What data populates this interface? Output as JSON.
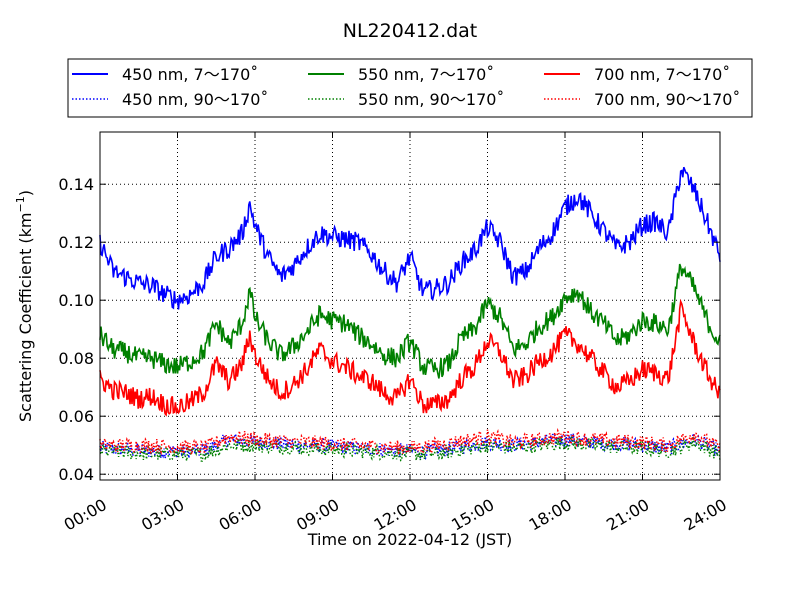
{
  "chart_data": {
    "type": "line",
    "title": "NL220412.dat",
    "xlabel": "Time on 2022-04-12 (JST)",
    "ylabel_main": "Scattering Coefficient (km",
    "ylabel_sup": "−1",
    "ylabel_close": ")",
    "xlim_hours": [
      0,
      24
    ],
    "ylim": [
      0.038,
      0.158
    ],
    "grid": true,
    "legend_position": "top",
    "x_ticks": [
      {
        "hour": 0,
        "label": "00:00"
      },
      {
        "hour": 3,
        "label": "03:00"
      },
      {
        "hour": 6,
        "label": "06:00"
      },
      {
        "hour": 9,
        "label": "09:00"
      },
      {
        "hour": 12,
        "label": "12:00"
      },
      {
        "hour": 15,
        "label": "15:00"
      },
      {
        "hour": 18,
        "label": "18:00"
      },
      {
        "hour": 21,
        "label": "21:00"
      },
      {
        "hour": 24,
        "label": "24:00"
      }
    ],
    "y_ticks": [
      {
        "value": 0.04,
        "label": "0.04"
      },
      {
        "value": 0.06,
        "label": "0.06"
      },
      {
        "value": 0.08,
        "label": "0.08"
      },
      {
        "value": 0.1,
        "label": "0.10"
      },
      {
        "value": 0.12,
        "label": "0.12"
      },
      {
        "value": 0.14,
        "label": "0.14"
      }
    ],
    "series": [
      {
        "name": "450 nm, 7～170˚",
        "color": "#0000ff",
        "style": "solid",
        "hours": [
          0,
          0.5,
          1,
          1.5,
          2,
          2.5,
          3,
          3.5,
          4,
          4.5,
          5,
          5.5,
          5.8,
          6,
          6.5,
          7,
          7.5,
          8,
          8.5,
          9,
          9.5,
          10,
          10.5,
          11,
          11.5,
          12,
          12.5,
          13,
          13.5,
          14,
          14.5,
          15,
          15.5,
          16,
          16.5,
          17,
          17.5,
          18,
          18.5,
          19,
          19.5,
          20,
          20.5,
          21,
          21.5,
          22,
          22.5,
          23,
          23.5,
          24
        ],
        "values": [
          0.12,
          0.11,
          0.108,
          0.106,
          0.105,
          0.102,
          0.1,
          0.102,
          0.106,
          0.115,
          0.118,
          0.123,
          0.133,
          0.126,
          0.115,
          0.108,
          0.112,
          0.118,
          0.123,
          0.122,
          0.121,
          0.12,
          0.116,
          0.11,
          0.106,
          0.115,
          0.103,
          0.104,
          0.106,
          0.113,
          0.117,
          0.125,
          0.12,
          0.108,
          0.11,
          0.118,
          0.123,
          0.132,
          0.136,
          0.13,
          0.124,
          0.118,
          0.12,
          0.126,
          0.127,
          0.123,
          0.145,
          0.138,
          0.127,
          0.115
        ]
      },
      {
        "name": "550 nm, 7～170˚",
        "color": "#008000",
        "style": "solid",
        "hours": [
          0,
          0.5,
          1,
          1.5,
          2,
          2.5,
          3,
          3.5,
          4,
          4.5,
          5,
          5.5,
          5.8,
          6,
          6.5,
          7,
          7.5,
          8,
          8.5,
          9,
          9.5,
          10,
          10.5,
          11,
          11.5,
          12,
          12.5,
          13,
          13.5,
          14,
          14.5,
          15,
          15.5,
          16,
          16.5,
          17,
          17.5,
          18,
          18.5,
          19,
          19.5,
          20,
          20.5,
          21,
          21.5,
          22,
          22.5,
          23,
          23.5,
          24
        ],
        "values": [
          0.088,
          0.083,
          0.082,
          0.08,
          0.08,
          0.078,
          0.077,
          0.079,
          0.082,
          0.092,
          0.085,
          0.092,
          0.103,
          0.094,
          0.086,
          0.081,
          0.084,
          0.089,
          0.095,
          0.093,
          0.092,
          0.088,
          0.085,
          0.081,
          0.08,
          0.086,
          0.077,
          0.076,
          0.078,
          0.087,
          0.09,
          0.099,
          0.094,
          0.083,
          0.085,
          0.091,
          0.094,
          0.101,
          0.103,
          0.096,
          0.092,
          0.086,
          0.088,
          0.093,
          0.092,
          0.09,
          0.112,
          0.104,
          0.093,
          0.085
        ]
      },
      {
        "name": "700 nm, 7～170˚",
        "color": "#ff0000",
        "style": "solid",
        "hours": [
          0,
          0.5,
          1,
          1.5,
          2,
          2.5,
          3,
          3.5,
          4,
          4.5,
          5,
          5.5,
          5.8,
          6,
          6.5,
          7,
          7.5,
          8,
          8.5,
          9,
          9.5,
          10,
          10.5,
          11,
          11.5,
          12,
          12.5,
          13,
          13.5,
          14,
          14.5,
          15,
          15.5,
          16,
          16.5,
          17,
          17.5,
          18,
          18.5,
          19,
          19.5,
          20,
          20.5,
          21,
          21.5,
          22,
          22.5,
          23,
          23.5,
          24
        ],
        "values": [
          0.073,
          0.069,
          0.068,
          0.066,
          0.067,
          0.064,
          0.063,
          0.065,
          0.068,
          0.078,
          0.072,
          0.078,
          0.088,
          0.081,
          0.073,
          0.068,
          0.071,
          0.076,
          0.083,
          0.079,
          0.077,
          0.074,
          0.072,
          0.068,
          0.066,
          0.073,
          0.064,
          0.064,
          0.066,
          0.073,
          0.077,
          0.086,
          0.082,
          0.072,
          0.074,
          0.079,
          0.082,
          0.088,
          0.085,
          0.08,
          0.075,
          0.07,
          0.072,
          0.076,
          0.075,
          0.073,
          0.097,
          0.085,
          0.075,
          0.067
        ]
      },
      {
        "name": "450 nm, 90～170˚",
        "color": "#0000ff",
        "style": "dotted",
        "hours": [
          0,
          2,
          4,
          5,
          6,
          8,
          10,
          12,
          13,
          15,
          16,
          18,
          19,
          21,
          22,
          23,
          24
        ],
        "values": [
          0.049,
          0.048,
          0.048,
          0.052,
          0.051,
          0.05,
          0.049,
          0.048,
          0.048,
          0.051,
          0.05,
          0.052,
          0.051,
          0.05,
          0.049,
          0.052,
          0.048
        ]
      },
      {
        "name": "550 nm, 90～170˚",
        "color": "#008000",
        "style": "dotted",
        "hours": [
          0,
          2,
          4,
          5,
          6,
          8,
          10,
          12,
          13,
          15,
          16,
          18,
          19,
          21,
          22,
          23,
          24
        ],
        "values": [
          0.048,
          0.047,
          0.047,
          0.05,
          0.05,
          0.049,
          0.048,
          0.047,
          0.047,
          0.05,
          0.049,
          0.051,
          0.05,
          0.049,
          0.048,
          0.051,
          0.047
        ]
      },
      {
        "name": "700 nm, 90～170˚",
        "color": "#ff0000",
        "style": "dotted",
        "hours": [
          0,
          2,
          4,
          5,
          6,
          8,
          10,
          12,
          13,
          15,
          16,
          18,
          19,
          21,
          22,
          23,
          24
        ],
        "values": [
          0.05,
          0.05,
          0.049,
          0.053,
          0.052,
          0.051,
          0.05,
          0.049,
          0.05,
          0.053,
          0.051,
          0.053,
          0.052,
          0.051,
          0.05,
          0.054,
          0.049
        ]
      }
    ]
  }
}
